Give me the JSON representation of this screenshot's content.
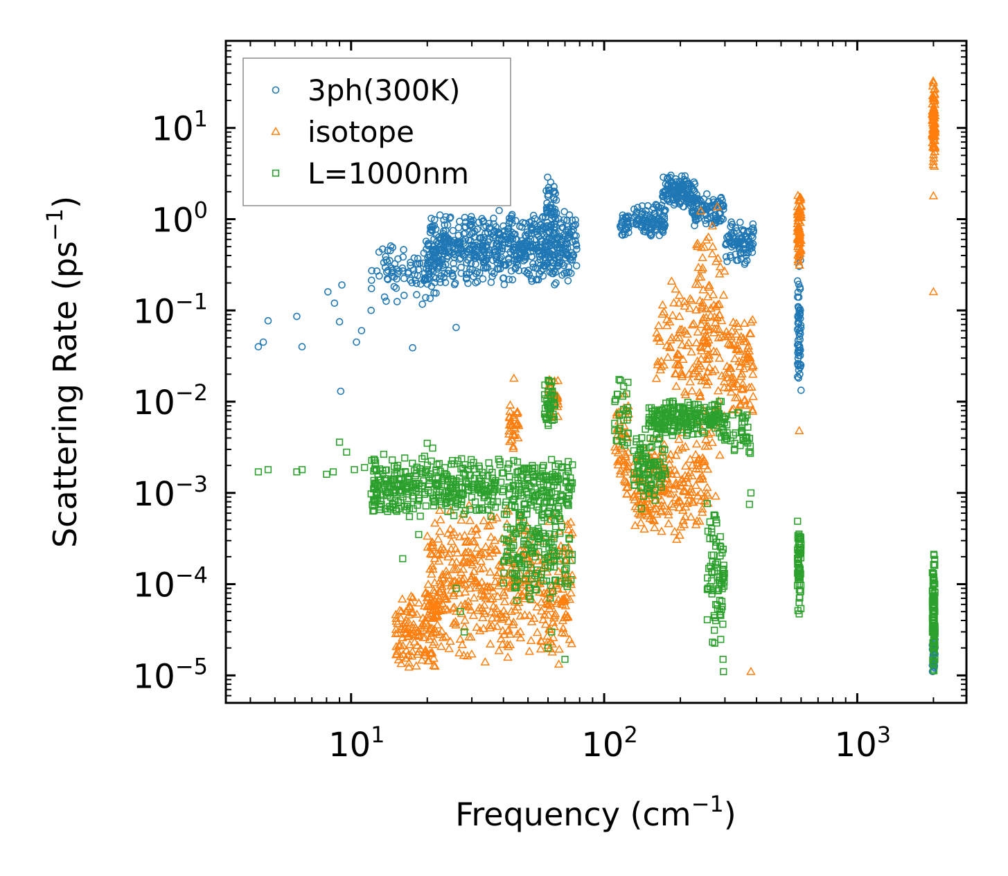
{
  "chart_data": {
    "type": "scatter",
    "xscale": "log",
    "yscale": "log",
    "xlim": [
      3.2,
      2700
    ],
    "ylim": [
      5e-06,
      90
    ],
    "xlabel": {
      "text": "Frequency (cm",
      "exp": "−1",
      "close": ")"
    },
    "ylabel": {
      "text": "Scattering Rate (ps",
      "exp": "−1",
      "close": ")"
    },
    "xticks": [
      {
        "value": 10,
        "base": "10",
        "exp": "1"
      },
      {
        "value": 100,
        "base": "10",
        "exp": "2"
      },
      {
        "value": 1000,
        "base": "10",
        "exp": "3"
      }
    ],
    "yticks": [
      {
        "value": 10,
        "base": "10",
        "exp": "1"
      },
      {
        "value": 1,
        "base": "10",
        "exp": "0"
      },
      {
        "value": 0.1,
        "base": "10",
        "exp": "−1"
      },
      {
        "value": 0.01,
        "base": "10",
        "exp": "−2"
      },
      {
        "value": 0.001,
        "base": "10",
        "exp": "−3"
      },
      {
        "value": 0.0001,
        "base": "10",
        "exp": "−4"
      },
      {
        "value": 1e-05,
        "base": "10",
        "exp": "−5"
      }
    ],
    "legend_position": "top-left",
    "series": [
      {
        "name": "3ph(300K)",
        "marker": "circle",
        "color": "#1f77b4",
        "clusters": [
          {
            "x": [
              4.3,
              4.7,
              4.5,
              6.1,
              6.4,
              8.1,
              8.6,
              9.2
            ],
            "y": [
              0.04,
              0.077,
              0.045,
              0.086,
              0.04,
              0.16,
              0.12,
              0.19
            ]
          },
          {
            "x": [
              9.0,
              9.1,
              10.5,
              11.0,
              12.0,
              17.5,
              26.0
            ],
            "y": [
              0.075,
              0.013,
              0.045,
              0.06,
              0.1,
              0.039,
              0.065
            ]
          }
        ],
        "bands": [
          {
            "x0": 12.0,
            "x1": 22.0,
            "y0": 0.1,
            "y1": 0.7,
            "n": 90
          },
          {
            "x0": 20.0,
            "x1": 78.0,
            "y0": 0.18,
            "y1": 1.3,
            "n": 650
          },
          {
            "x0": 59.0,
            "x1": 65.0,
            "y0": 0.5,
            "y1": 3.0,
            "n": 50
          },
          {
            "x0": 115.0,
            "x1": 125.0,
            "y0": 0.55,
            "y1": 1.3,
            "n": 30
          },
          {
            "x0": 130.0,
            "x1": 175.0,
            "y0": 0.6,
            "y1": 1.5,
            "n": 100
          },
          {
            "x0": 170.0,
            "x1": 230.0,
            "y0": 1.3,
            "y1": 3.2,
            "n": 140
          },
          {
            "x0": 220.0,
            "x1": 300.0,
            "y0": 0.8,
            "y1": 2.0,
            "n": 90
          },
          {
            "x0": 300.0,
            "x1": 390.0,
            "y0": 0.3,
            "y1": 1.0,
            "n": 90
          },
          {
            "x0": 580.0,
            "x1": 600.0,
            "y0": 0.011,
            "y1": 0.45,
            "n": 60
          },
          {
            "x0": 1980.0,
            "x1": 2030.0,
            "y0": 1e-05,
            "y1": 3e-05,
            "n": 30
          }
        ]
      },
      {
        "name": "isotope",
        "marker": "triangle",
        "color": "#ff7f0e",
        "clusters": [
          {
            "x": [
              44.0,
              590.0,
              380.0,
              2000.0,
              2000.0
            ],
            "y": [
              0.018,
              0.0048,
              1.1e-05,
              0.16,
              1.8
            ]
          }
        ],
        "bands": [
          {
            "x0": 15.0,
            "x1": 22.0,
            "y0": 1e-05,
            "y1": 0.0001,
            "n": 120
          },
          {
            "x0": 20.0,
            "x1": 75.0,
            "y0": 1.1e-05,
            "y1": 0.0008,
            "n": 500
          },
          {
            "x0": 42.0,
            "x1": 46.0,
            "y0": 0.0025,
            "y1": 0.012,
            "n": 30
          },
          {
            "x0": 60.0,
            "x1": 66.0,
            "y0": 0.006,
            "y1": 0.02,
            "n": 30
          },
          {
            "x0": 110.0,
            "x1": 125.0,
            "y0": 0.0008,
            "y1": 0.015,
            "n": 50
          },
          {
            "x0": 130.0,
            "x1": 260.0,
            "y0": 0.0003,
            "y1": 0.005,
            "n": 220
          },
          {
            "x0": 160.0,
            "x1": 260.0,
            "y0": 0.008,
            "y1": 0.25,
            "n": 90
          },
          {
            "x0": 230.0,
            "x1": 300.0,
            "y0": 0.0008,
            "y1": 2.5,
            "n": 110
          },
          {
            "x0": 300.0,
            "x1": 390.0,
            "y0": 0.005,
            "y1": 0.1,
            "n": 90
          },
          {
            "x0": 580.0,
            "x1": 600.0,
            "y0": 0.3,
            "y1": 2.0,
            "n": 70
          },
          {
            "x0": 1980.0,
            "x1": 2030.0,
            "y0": 3.0,
            "y1": 40.0,
            "n": 90
          }
        ]
      },
      {
        "name": "L=1000nm",
        "marker": "square",
        "color": "#2ca02c",
        "clusters": [
          {
            "x": [
              4.3,
              4.7,
              6.1,
              6.4,
              8.0,
              8.5,
              9.0,
              9.6,
              10.3,
              11.3
            ],
            "y": [
              0.0017,
              0.0018,
              0.0017,
              0.0018,
              0.0016,
              0.0017,
              0.0036,
              0.0028,
              0.0018,
              0.0019
            ]
          },
          {
            "x": [
              16.0,
              16.5,
              17.0,
              18.5,
              20.0,
              21.0,
              26.0,
              27.0,
              28.0,
              60.0,
              62.0,
              70.0,
              295.0,
              296.0,
              375.0,
              380.0,
              2000.0
            ],
            "y": [
              0.00019,
              0.00065,
              0.00055,
              0.00035,
              0.0035,
              0.0031,
              9e-05,
              5e-05,
              3e-05,
              2e-05,
              3e-05,
              1.5e-05,
              1.5e-05,
              1.1e-05,
              0.00075,
              0.001,
              5e-05
            ]
          }
        ],
        "bands": [
          {
            "x0": 12.0,
            "x1": 75.0,
            "y0": 0.0005,
            "y1": 0.0027,
            "n": 500
          },
          {
            "x0": 40.0,
            "x1": 75.0,
            "y0": 5e-05,
            "y1": 0.0009,
            "n": 160
          },
          {
            "x0": 58.0,
            "x1": 64.0,
            "y0": 0.005,
            "y1": 0.02,
            "n": 40
          },
          {
            "x0": 110.0,
            "x1": 125.0,
            "y0": 0.002,
            "y1": 0.02,
            "n": 30
          },
          {
            "x0": 130.0,
            "x1": 175.0,
            "y0": 0.0006,
            "y1": 0.006,
            "n": 90
          },
          {
            "x0": 150.0,
            "x1": 290.0,
            "y0": 0.004,
            "y1": 0.011,
            "n": 200
          },
          {
            "x0": 255.0,
            "x1": 300.0,
            "y0": 2e-05,
            "y1": 0.001,
            "n": 80
          },
          {
            "x0": 290.0,
            "x1": 380.0,
            "y0": 0.0025,
            "y1": 0.009,
            "n": 50
          },
          {
            "x0": 580.0,
            "x1": 600.0,
            "y0": 4e-05,
            "y1": 0.0006,
            "n": 60
          },
          {
            "x0": 1980.0,
            "x1": 2030.0,
            "y0": 1e-05,
            "y1": 0.0003,
            "n": 110
          }
        ]
      }
    ]
  }
}
